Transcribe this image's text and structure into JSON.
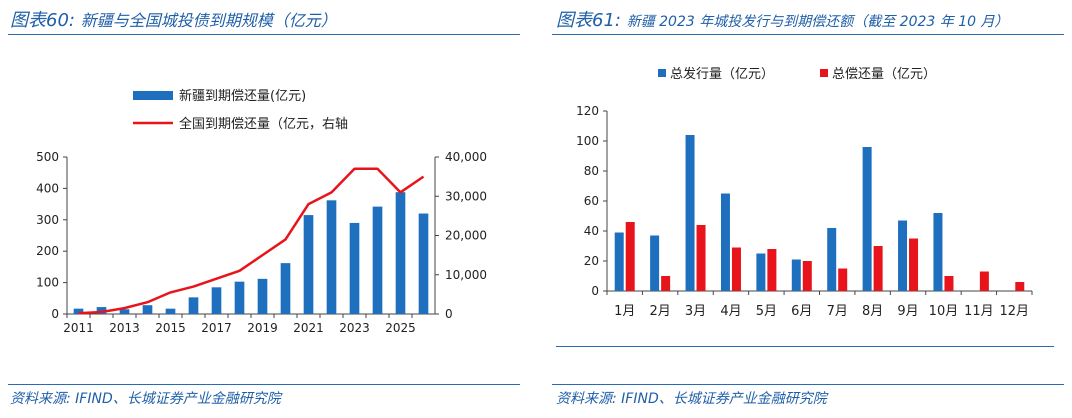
{
  "figure_left": {
    "label": "图表60:",
    "title": "新疆与全国城投债到期规模（亿元）"
  },
  "figure_right": {
    "label": "图表61:",
    "title": "新疆 2023 年城投发行与到期偿还额（截至 2023 年 10 月）"
  },
  "source_left": "资料来源:   IFIND、长城证券产业金融研究院",
  "source_right": "资料来源:   IFIND、长城证券产业金融研究院",
  "colors": {
    "blue": "#1f6fbf",
    "red": "#e8141b",
    "title_blue": "#1f5fa8"
  },
  "chart_data": [
    {
      "type": "bar+line",
      "title": "新疆与全国城投债到期规模（亿元）",
      "x": [
        2011,
        2012,
        2013,
        2014,
        2015,
        2016,
        2017,
        2018,
        2019,
        2020,
        2021,
        2022,
        2023,
        2024,
        2025,
        2026
      ],
      "x_tick_labels": [
        "2011",
        "2013",
        "2015",
        "2017",
        "2019",
        "2021",
        "2023",
        "2025"
      ],
      "series": [
        {
          "name": "新疆到期偿还量(亿元)",
          "kind": "bar",
          "axis": "left",
          "values": [
            17,
            22,
            15,
            28,
            17,
            53,
            85,
            103,
            112,
            162,
            315,
            362,
            290,
            342,
            388,
            320
          ]
        },
        {
          "name": "全国到期偿还量（亿元，右轴",
          "kind": "line",
          "axis": "right",
          "values": [
            200,
            500,
            1500,
            3000,
            5500,
            7000,
            9000,
            11000,
            15000,
            19000,
            28000,
            31000,
            37000,
            37000,
            31000,
            35000
          ]
        }
      ],
      "y_left": {
        "min": 0,
        "max": 500,
        "ticks": [
          "0",
          "100",
          "200",
          "300",
          "400",
          "500"
        ]
      },
      "y_right": {
        "min": 0,
        "max": 40000,
        "ticks": [
          "0",
          "10,000",
          "20,000",
          "30,000",
          "40,000"
        ]
      },
      "legend_position": "top-center"
    },
    {
      "type": "bar",
      "title": "新疆 2023 年城投发行与到期偿还额（截至 2023 年 10 月）",
      "categories": [
        "1月",
        "2月",
        "3月",
        "4月",
        "5月",
        "6月",
        "7月",
        "8月",
        "9月",
        "10月",
        "11月",
        "12月"
      ],
      "series": [
        {
          "name": "总发行量（亿元）",
          "values": [
            39,
            37,
            104,
            65,
            25,
            21,
            42,
            96,
            47,
            52,
            0,
            0
          ]
        },
        {
          "name": "总偿还量（亿元）",
          "values": [
            46,
            10,
            44,
            29,
            28,
            20,
            15,
            30,
            35,
            10,
            13,
            6
          ]
        }
      ],
      "ylim": [
        0,
        120
      ],
      "y_ticks": [
        "0",
        "20",
        "40",
        "60",
        "80",
        "100",
        "120"
      ],
      "legend_position": "top-center"
    }
  ]
}
